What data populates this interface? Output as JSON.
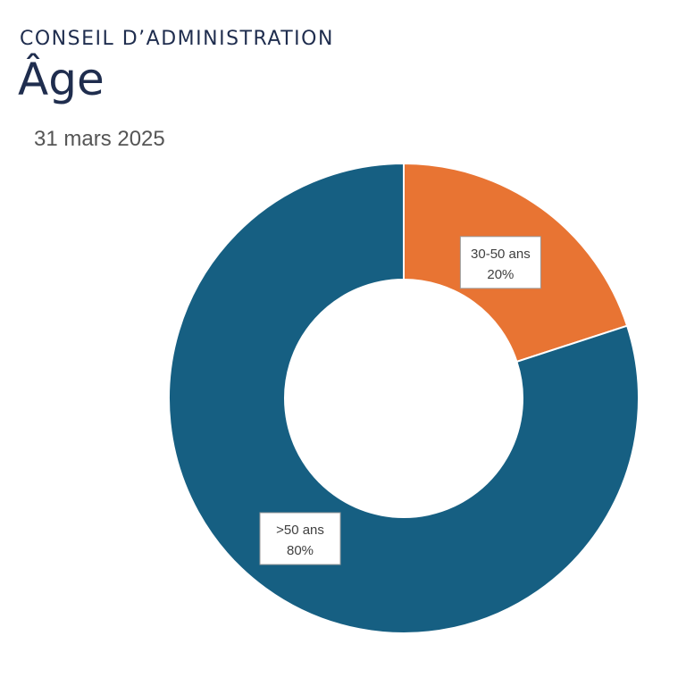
{
  "header": {
    "eyebrow": "CONSEIL D’ADMINISTRATION",
    "title": "Âge",
    "date": "31 mars 2025"
  },
  "chart_data": {
    "type": "pie",
    "donut": true,
    "legend": "none",
    "categories": [
      "30-50 ans",
      ">50 ans"
    ],
    "values": [
      20,
      80
    ],
    "labels": [
      "20%",
      "80%"
    ],
    "colors": [
      "#e87433",
      "#165f82"
    ],
    "title": ""
  }
}
